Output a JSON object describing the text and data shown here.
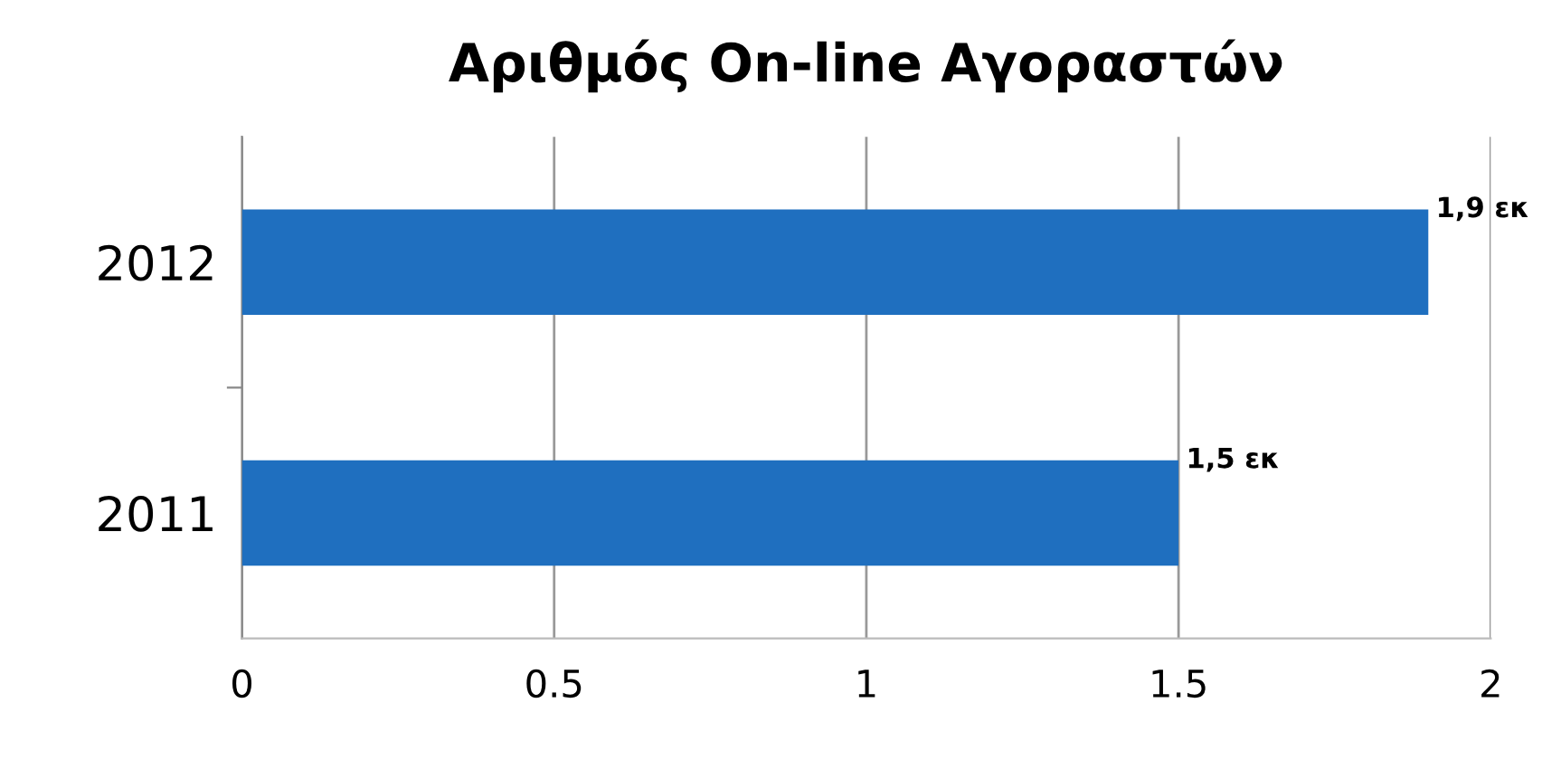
{
  "chart_data": {
    "type": "bar",
    "orientation": "horizontal",
    "title": "Αριθμός On-line Αγοραστών",
    "categories": [
      "2012",
      "2011"
    ],
    "values": [
      1.9,
      1.5
    ],
    "value_labels": [
      "1,9 εκ",
      "1,5 εκ"
    ],
    "color": "#1f6fbf",
    "xlim": [
      0,
      2
    ],
    "xticks": [
      0,
      0.5,
      1,
      1.5,
      2
    ],
    "grid": "x"
  }
}
